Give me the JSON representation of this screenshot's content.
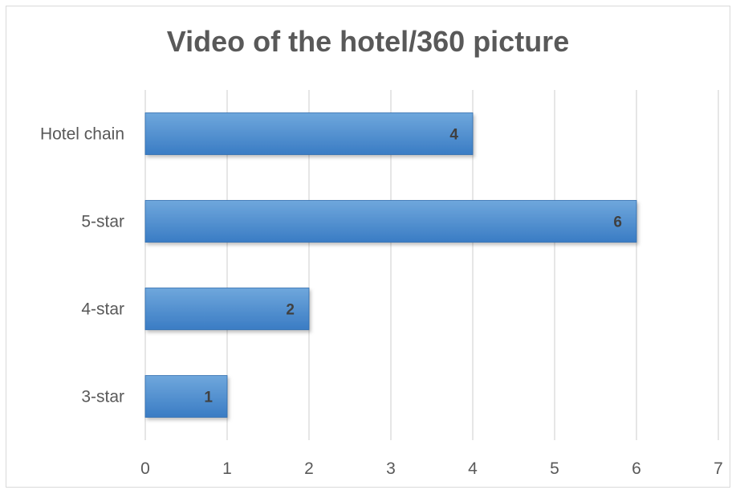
{
  "chart_data": {
    "type": "bar",
    "orientation": "horizontal",
    "title": "Video of the hotel/360 picture",
    "categories": [
      "Hotel chain",
      "5-star",
      "4-star",
      "3-star"
    ],
    "values": [
      4,
      6,
      2,
      1
    ],
    "data_labels": [
      "4",
      "6",
      "2",
      "1"
    ],
    "xlim": [
      0,
      7
    ],
    "x_ticks": [
      "0",
      "1",
      "2",
      "3",
      "4",
      "5",
      "6",
      "7"
    ],
    "xlabel": "",
    "ylabel": "",
    "grid": "vertical",
    "legend": "none",
    "colors": {
      "bar_top": "#6fa7dc",
      "bar_bottom": "#3a7cc4",
      "bar_edge": "#2f6db0",
      "grid": "#d9d9d9",
      "text": "#595959"
    }
  }
}
